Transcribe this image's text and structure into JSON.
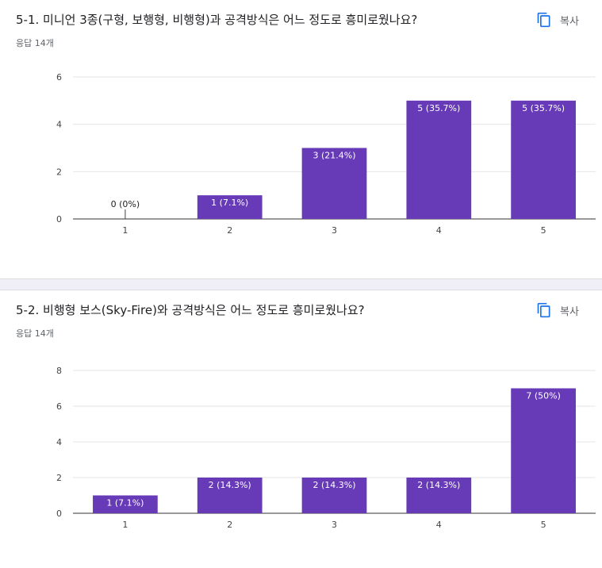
{
  "questions": [
    {
      "title": "5-1. 미니언 3종(구형, 보행형, 비행형)과 공격방식은 어느 정도로 흥미로웠나요?",
      "count": "응답 14개",
      "copy_label": "복사",
      "chart_data": {
        "type": "bar",
        "categories": [
          "1",
          "2",
          "3",
          "4",
          "5"
        ],
        "values": [
          0,
          1,
          3,
          5,
          5
        ],
        "data_labels": [
          "0 (0%)",
          "1 (7.1%)",
          "3 (21.4%)",
          "5 (35.7%)",
          "5 (35.7%)"
        ],
        "ylim": [
          0,
          6
        ],
        "yticks": [
          0,
          2,
          4,
          6
        ],
        "grid": true,
        "bar_color": "#673ab7"
      }
    },
    {
      "title": "5-2. 비행형 보스(Sky-Fire)와 공격방식은 어느 정도로 흥미로웠나요?",
      "count": "응답 14개",
      "copy_label": "복사",
      "chart_data": {
        "type": "bar",
        "categories": [
          "1",
          "2",
          "3",
          "4",
          "5"
        ],
        "values": [
          1,
          2,
          2,
          2,
          7
        ],
        "data_labels": [
          "1 (7.1%)",
          "2 (14.3%)",
          "2 (14.3%)",
          "2 (14.3%)",
          "7 (50%)"
        ],
        "ylim": [
          0,
          8
        ],
        "yticks": [
          0,
          2,
          4,
          6,
          8
        ],
        "grid": true,
        "bar_color": "#673ab7"
      }
    }
  ]
}
